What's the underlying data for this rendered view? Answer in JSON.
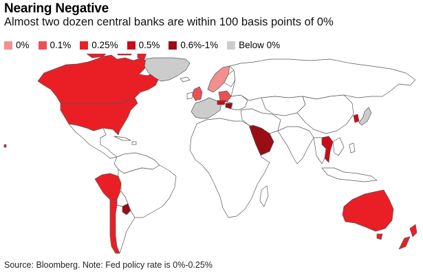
{
  "title": "Nearing Negative",
  "subtitle": "Almost two dozen central banks are within 100 basis points of 0%",
  "legend": [
    {
      "label": "0%",
      "color": "#f28f8f"
    },
    {
      "label": "0.1%",
      "color": "#ee4f55"
    },
    {
      "label": "0.25%",
      "color": "#ea1f26"
    },
    {
      "label": "0.5%",
      "color": "#cc0c18"
    },
    {
      "label": "0.6%-1%",
      "color": "#9b0d14"
    },
    {
      "label": "Below 0%",
      "color": "#cccccc"
    }
  ],
  "map_style": {
    "land": "#ffffff",
    "border": "#555555"
  },
  "source": "Source: Bloomberg. Note: Fed policy rate is 0%-0.25%"
}
